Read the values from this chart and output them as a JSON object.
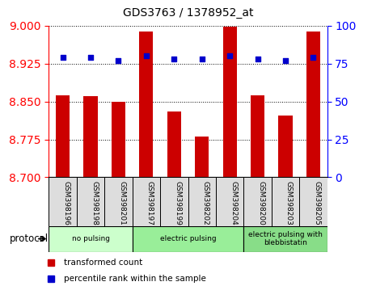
{
  "title": "GDS3763 / 1378952_at",
  "samples": [
    "GSM398196",
    "GSM398198",
    "GSM398201",
    "GSM398197",
    "GSM398199",
    "GSM398202",
    "GSM398204",
    "GSM398200",
    "GSM398203",
    "GSM398205"
  ],
  "transformed_count": [
    8.863,
    8.861,
    8.85,
    8.988,
    8.83,
    8.78,
    8.998,
    8.862,
    8.822,
    8.988
  ],
  "percentile_rank": [
    79,
    79,
    77,
    80,
    78,
    78,
    80,
    78,
    77,
    79
  ],
  "ylim_left": [
    8.7,
    9.0
  ],
  "ylim_right": [
    0,
    100
  ],
  "yticks_left": [
    8.7,
    8.775,
    8.85,
    8.925,
    9.0
  ],
  "yticks_right": [
    0,
    25,
    50,
    75,
    100
  ],
  "bar_color": "#cc0000",
  "dot_color": "#0000cc",
  "groups": [
    {
      "label": "no pulsing",
      "start": 0,
      "end": 3,
      "color": "#ccffcc"
    },
    {
      "label": "electric pulsing",
      "start": 3,
      "end": 7,
      "color": "#99ee99"
    },
    {
      "label": "electric pulsing with\nblebbistatin",
      "start": 7,
      "end": 10,
      "color": "#88dd88"
    }
  ],
  "legend_tc_label": "transformed count",
  "legend_pr_label": "percentile rank within the sample",
  "legend_tc_color": "#cc0000",
  "legend_pr_color": "#0000cc",
  "protocol_label": "protocol",
  "bar_width": 0.5,
  "base_value": 8.7,
  "cell_bg_color": "#dddddd"
}
